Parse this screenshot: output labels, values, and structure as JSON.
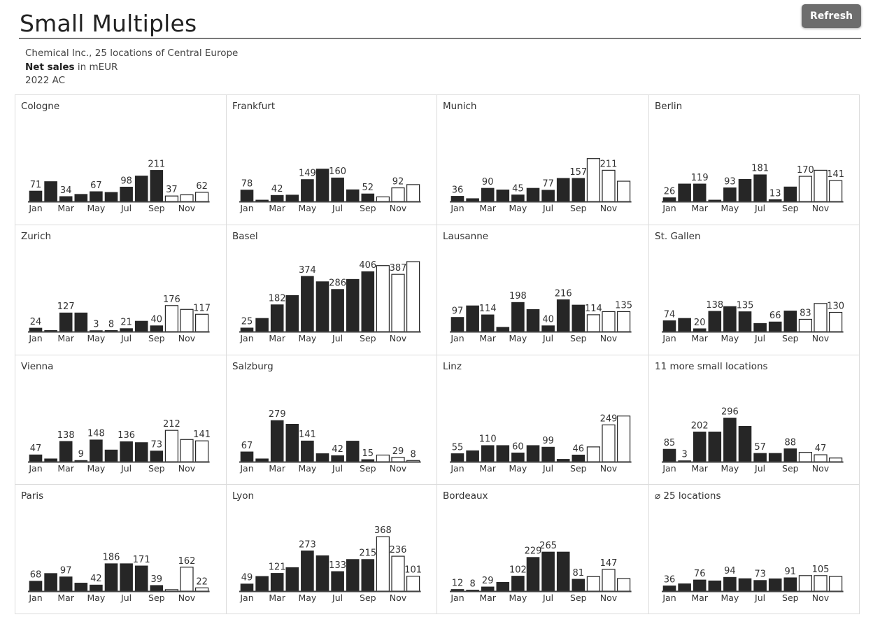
{
  "page": {
    "title": "Small Multiples",
    "refresh_label": "Refresh",
    "subtitle_line1": "Chemical Inc., 25 locations of Central Europe",
    "subtitle_measure": "Net sales",
    "subtitle_unit": " in mEUR",
    "subtitle_scenario": "2022 AC"
  },
  "colors": {
    "actual_fill": "#262626",
    "forecast_fill": "#ffffff",
    "bar_stroke": "#262626",
    "axis": "#444444",
    "label": "#333333"
  },
  "chart_data": [
    {
      "type": "bar",
      "title": "Cologne",
      "categories": [
        "Jan",
        "Feb",
        "Mar",
        "Apr",
        "May",
        "Jun",
        "Jul",
        "Aug",
        "Sep",
        "Oct",
        "Nov",
        "Dec"
      ],
      "tick_labels": [
        "Jan",
        "",
        "Mar",
        "",
        "May",
        "",
        "Jul",
        "",
        "Sep",
        "",
        "Nov",
        ""
      ],
      "values": [
        71,
        135,
        34,
        49,
        67,
        62,
        98,
        173,
        211,
        37,
        45,
        62
      ],
      "actual_months": 9,
      "labels": [
        71,
        null,
        34,
        null,
        67,
        null,
        98,
        null,
        211,
        37,
        null,
        62
      ]
    },
    {
      "type": "bar",
      "title": "Frankfurt",
      "categories": [
        "Jan",
        "Feb",
        "Mar",
        "Apr",
        "May",
        "Jun",
        "Jul",
        "Aug",
        "Sep",
        "Oct",
        "Nov",
        "Dec"
      ],
      "tick_labels": [
        "Jan",
        "",
        "Mar",
        "",
        "May",
        "",
        "Jul",
        "",
        "Sep",
        "",
        "Nov",
        ""
      ],
      "values": [
        78,
        10,
        42,
        44,
        149,
        220,
        160,
        80,
        52,
        31,
        92,
        114
      ],
      "actual_months": 9,
      "labels": [
        78,
        null,
        42,
        null,
        149,
        null,
        160,
        null,
        52,
        null,
        92,
        null
      ]
    },
    {
      "type": "bar",
      "title": "Munich",
      "categories": [
        "Jan",
        "Feb",
        "Mar",
        "Apr",
        "May",
        "Jun",
        "Jul",
        "Aug",
        "Sep",
        "Oct",
        "Nov",
        "Dec"
      ],
      "tick_labels": [
        "Jan",
        "",
        "Mar",
        "",
        "May",
        "",
        "Jul",
        "",
        "Sep",
        "",
        "Nov",
        ""
      ],
      "values": [
        36,
        20,
        90,
        79,
        45,
        90,
        77,
        157,
        157,
        290,
        211,
        137
      ],
      "actual_months": 9,
      "labels": [
        36,
        null,
        90,
        null,
        45,
        null,
        77,
        null,
        157,
        null,
        211,
        null
      ]
    },
    {
      "type": "bar",
      "title": "Berlin",
      "categories": [
        "Jan",
        "Feb",
        "Mar",
        "Apr",
        "May",
        "Jun",
        "Jul",
        "Aug",
        "Sep",
        "Oct",
        "Nov",
        "Dec"
      ],
      "tick_labels": [
        "Jan",
        "",
        "Mar",
        "",
        "May",
        "",
        "Jul",
        "",
        "Sep",
        "",
        "Nov",
        ""
      ],
      "values": [
        26,
        119,
        119,
        10,
        93,
        150,
        181,
        13,
        99,
        170,
        211,
        141
      ],
      "actual_months": 9,
      "labels": [
        26,
        null,
        119,
        null,
        93,
        null,
        181,
        13,
        null,
        170,
        null,
        141
      ]
    },
    {
      "type": "bar",
      "title": "Zurich",
      "categories": [
        "Jan",
        "Feb",
        "Mar",
        "Apr",
        "May",
        "Jun",
        "Jul",
        "Aug",
        "Sep",
        "Oct",
        "Nov",
        "Dec"
      ],
      "tick_labels": [
        "Jan",
        "",
        "Mar",
        "",
        "May",
        "",
        "Jul",
        "",
        "Sep",
        "",
        "Nov",
        ""
      ],
      "values": [
        24,
        8,
        127,
        127,
        3,
        8,
        21,
        71,
        40,
        176,
        150,
        117
      ],
      "actual_months": 9,
      "labels": [
        24,
        null,
        127,
        null,
        3,
        8,
        21,
        null,
        40,
        176,
        null,
        117
      ]
    },
    {
      "type": "bar",
      "title": "Basel",
      "categories": [
        "Jan",
        "Feb",
        "Mar",
        "Apr",
        "May",
        "Jun",
        "Jul",
        "Aug",
        "Sep",
        "Oct",
        "Nov",
        "Dec"
      ],
      "tick_labels": [
        "Jan",
        "",
        "Mar",
        "",
        "May",
        "",
        "Jul",
        "",
        "Sep",
        "",
        "Nov",
        ""
      ],
      "values": [
        25,
        90,
        182,
        245,
        374,
        338,
        286,
        354,
        406,
        446,
        387,
        473
      ],
      "actual_months": 9,
      "labels": [
        25,
        null,
        182,
        null,
        374,
        null,
        286,
        null,
        406,
        null,
        387,
        null
      ]
    },
    {
      "type": "bar",
      "title": "Lausanne",
      "categories": [
        "Jan",
        "Feb",
        "Mar",
        "Apr",
        "May",
        "Jun",
        "Jul",
        "Aug",
        "Sep",
        "Oct",
        "Nov",
        "Dec"
      ],
      "tick_labels": [
        "Jan",
        "",
        "Mar",
        "",
        "May",
        "",
        "Jul",
        "",
        "Sep",
        "",
        "Nov",
        ""
      ],
      "values": [
        97,
        175,
        114,
        30,
        198,
        150,
        40,
        216,
        180,
        114,
        135,
        135
      ],
      "actual_months": 9,
      "labels": [
        97,
        null,
        114,
        null,
        198,
        null,
        40,
        216,
        null,
        114,
        null,
        135
      ]
    },
    {
      "type": "bar",
      "title": "St. Gallen",
      "categories": [
        "Jan",
        "Feb",
        "Mar",
        "Apr",
        "May",
        "Jun",
        "Jul",
        "Aug",
        "Sep",
        "Oct",
        "Nov",
        "Dec"
      ],
      "tick_labels": [
        "Jan",
        "",
        "Mar",
        "",
        "May",
        "",
        "Jul",
        "",
        "Sep",
        "",
        "Nov",
        ""
      ],
      "values": [
        74,
        90,
        20,
        138,
        170,
        135,
        56,
        66,
        140,
        83,
        190,
        130
      ],
      "actual_months": 9,
      "labels": [
        74,
        null,
        20,
        138,
        null,
        135,
        null,
        66,
        null,
        83,
        null,
        130
      ]
    },
    {
      "type": "bar",
      "title": "Vienna",
      "categories": [
        "Jan",
        "Feb",
        "Mar",
        "Apr",
        "May",
        "Jun",
        "Jul",
        "Aug",
        "Sep",
        "Oct",
        "Nov",
        "Dec"
      ],
      "tick_labels": [
        "Jan",
        "",
        "Mar",
        "",
        "May",
        "",
        "Jul",
        "",
        "Sep",
        "",
        "Nov",
        ""
      ],
      "values": [
        47,
        20,
        138,
        9,
        148,
        80,
        136,
        130,
        73,
        212,
        150,
        141
      ],
      "actual_months": 9,
      "labels": [
        47,
        null,
        138,
        9,
        148,
        null,
        136,
        null,
        73,
        212,
        null,
        141
      ]
    },
    {
      "type": "bar",
      "title": "Salzburg",
      "categories": [
        "Jan",
        "Feb",
        "Mar",
        "Apr",
        "May",
        "Jun",
        "Jul",
        "Aug",
        "Sep",
        "Oct",
        "Nov",
        "Dec"
      ],
      "tick_labels": [
        "Jan",
        "",
        "Mar",
        "",
        "May",
        "",
        "Jul",
        "",
        "Sep",
        "",
        "Nov",
        ""
      ],
      "values": [
        67,
        20,
        279,
        254,
        141,
        55,
        42,
        140,
        15,
        45,
        29,
        8
      ],
      "actual_months": 9,
      "labels": [
        67,
        null,
        279,
        null,
        141,
        null,
        42,
        null,
        15,
        null,
        29,
        8
      ]
    },
    {
      "type": "bar",
      "title": "Linz",
      "categories": [
        "Jan",
        "Feb",
        "Mar",
        "Apr",
        "May",
        "Jun",
        "Jul",
        "Aug",
        "Sep",
        "Oct",
        "Nov",
        "Dec"
      ],
      "tick_labels": [
        "Jan",
        "",
        "Mar",
        "",
        "May",
        "",
        "Jul",
        "",
        "Sep",
        "",
        "Nov",
        ""
      ],
      "values": [
        55,
        75,
        110,
        110,
        60,
        110,
        99,
        17,
        46,
        100,
        249,
        309
      ],
      "actual_months": 9,
      "labels": [
        55,
        null,
        110,
        null,
        60,
        null,
        99,
        null,
        46,
        null,
        249,
        null
      ]
    },
    {
      "type": "bar",
      "title": "11 more small locations",
      "categories": [
        "Jan",
        "Feb",
        "Mar",
        "Apr",
        "May",
        "Jun",
        "Jul",
        "Aug",
        "Sep",
        "Oct",
        "Nov",
        "Dec"
      ],
      "tick_labels": [
        "Jan",
        "",
        "Mar",
        "",
        "May",
        "",
        "Jul",
        "",
        "Sep",
        "",
        "Nov",
        ""
      ],
      "values": [
        85,
        3,
        202,
        202,
        296,
        240,
        57,
        57,
        88,
        63,
        47,
        25
      ],
      "actual_months": 9,
      "labels": [
        85,
        3,
        202,
        null,
        296,
        null,
        57,
        null,
        88,
        null,
        47,
        null
      ]
    },
    {
      "type": "bar",
      "title": "Paris",
      "categories": [
        "Jan",
        "Feb",
        "Mar",
        "Apr",
        "May",
        "Jun",
        "Jul",
        "Aug",
        "Sep",
        "Oct",
        "Nov",
        "Dec"
      ],
      "tick_labels": [
        "Jan",
        "",
        "Mar",
        "",
        "May",
        "",
        "Jul",
        "",
        "Sep",
        "",
        "Nov",
        ""
      ],
      "values": [
        68,
        120,
        97,
        55,
        42,
        186,
        186,
        171,
        39,
        10,
        162,
        22
      ],
      "actual_months": 9,
      "labels": [
        68,
        null,
        97,
        null,
        42,
        186,
        null,
        171,
        39,
        null,
        162,
        22
      ]
    },
    {
      "type": "bar",
      "title": "Lyon",
      "categories": [
        "Jan",
        "Feb",
        "Mar",
        "Apr",
        "May",
        "Jun",
        "Jul",
        "Aug",
        "Sep",
        "Oct",
        "Nov",
        "Dec"
      ],
      "tick_labels": [
        "Jan",
        "",
        "Mar",
        "",
        "May",
        "",
        "Jul",
        "",
        "Sep",
        "",
        "Nov",
        ""
      ],
      "values": [
        49,
        100,
        121,
        160,
        273,
        240,
        133,
        215,
        215,
        368,
        236,
        101
      ],
      "actual_months": 9,
      "labels": [
        49,
        null,
        121,
        null,
        273,
        null,
        133,
        null,
        215,
        368,
        236,
        101
      ]
    },
    {
      "type": "bar",
      "title": "Bordeaux",
      "categories": [
        "Jan",
        "Feb",
        "Mar",
        "Apr",
        "May",
        "Jun",
        "Jul",
        "Aug",
        "Sep",
        "Oct",
        "Nov",
        "Dec"
      ],
      "tick_labels": [
        "Jan",
        "",
        "Mar",
        "",
        "May",
        "",
        "Jul",
        "",
        "Sep",
        "",
        "Nov",
        ""
      ],
      "values": [
        12,
        8,
        29,
        60,
        102,
        229,
        265,
        265,
        81,
        98,
        147,
        85
      ],
      "actual_months": 9,
      "labels": [
        12,
        8,
        29,
        null,
        102,
        229,
        265,
        null,
        81,
        null,
        147,
        null
      ]
    },
    {
      "type": "bar",
      "title": "⌀ 25 locations",
      "categories": [
        "Jan",
        "Feb",
        "Mar",
        "Apr",
        "May",
        "Jun",
        "Jul",
        "Aug",
        "Sep",
        "Oct",
        "Nov",
        "Dec"
      ],
      "tick_labels": [
        "Jan",
        "",
        "Mar",
        "",
        "May",
        "",
        "Jul",
        "",
        "Sep",
        "",
        "Nov",
        ""
      ],
      "values": [
        36,
        50,
        76,
        70,
        94,
        85,
        73,
        84,
        91,
        105,
        105,
        99
      ],
      "actual_months": 9,
      "labels": [
        36,
        null,
        76,
        null,
        94,
        null,
        73,
        null,
        91,
        null,
        105,
        null
      ]
    }
  ]
}
